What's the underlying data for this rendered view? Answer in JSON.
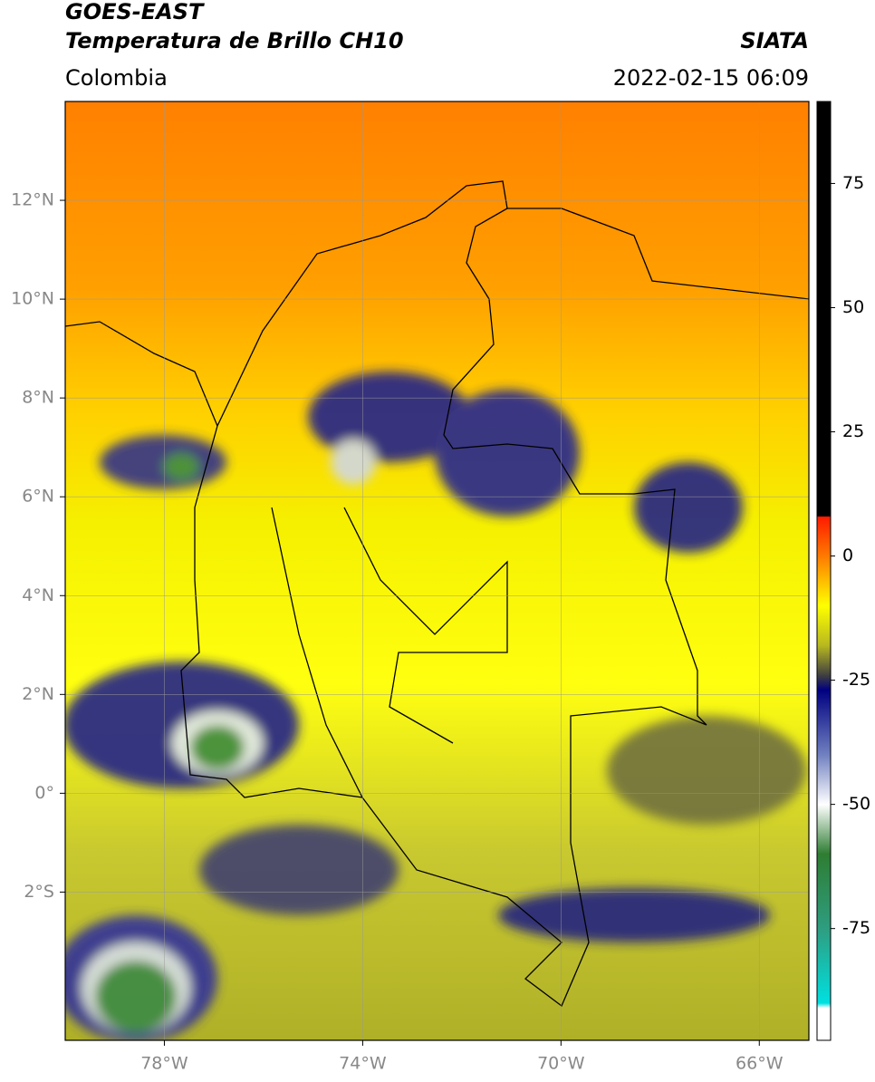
{
  "header": {
    "title": "GOES-EAST",
    "subtitle": "Temperatura de Brillo CH10",
    "source": "SIATA",
    "region": "Colombia",
    "datetime": "2022-02-15 06:09"
  },
  "map": {
    "lon_range": [
      -80,
      -65
    ],
    "lat_range": [
      -5,
      14
    ],
    "grid": true,
    "lon_ticks": [
      {
        "value": -78,
        "label": "78°W"
      },
      {
        "value": -74,
        "label": "74°W"
      },
      {
        "value": -70,
        "label": "70°W"
      },
      {
        "value": -66,
        "label": "66°W"
      }
    ],
    "lat_ticks": [
      {
        "value": 12,
        "label": "12°N"
      },
      {
        "value": 10,
        "label": "10°N"
      },
      {
        "value": 8,
        "label": "8°N"
      },
      {
        "value": 6,
        "label": "6°N"
      },
      {
        "value": 4,
        "label": "4°N"
      },
      {
        "value": 2,
        "label": "2°N"
      },
      {
        "value": 0,
        "label": "0°"
      },
      {
        "value": -2,
        "label": "2°S"
      }
    ]
  },
  "colorbar": {
    "range": [
      -97.5,
      91.5
    ],
    "ticks": [
      75,
      50,
      25,
      0,
      -25,
      -50,
      -75
    ],
    "stops": [
      {
        "value": 91.5,
        "color": "#000000"
      },
      {
        "value": 8,
        "color": "#000000"
      },
      {
        "value": 7.9,
        "color": "#ff1a00"
      },
      {
        "value": 0,
        "color": "#ff7a00"
      },
      {
        "value": -10,
        "color": "#ffff00"
      },
      {
        "value": -18,
        "color": "#b8b820"
      },
      {
        "value": -24,
        "color": "#404040"
      },
      {
        "value": -27,
        "color": "#000080"
      },
      {
        "value": -40,
        "color": "#7080c0"
      },
      {
        "value": -50,
        "color": "#ffffff"
      },
      {
        "value": -60,
        "color": "#2e7d32"
      },
      {
        "value": -75,
        "color": "#2e9d80"
      },
      {
        "value": -90,
        "color": "#00e0e0"
      },
      {
        "value": -91,
        "color": "#ffffff"
      },
      {
        "value": -97.5,
        "color": "#ffffff"
      }
    ]
  }
}
